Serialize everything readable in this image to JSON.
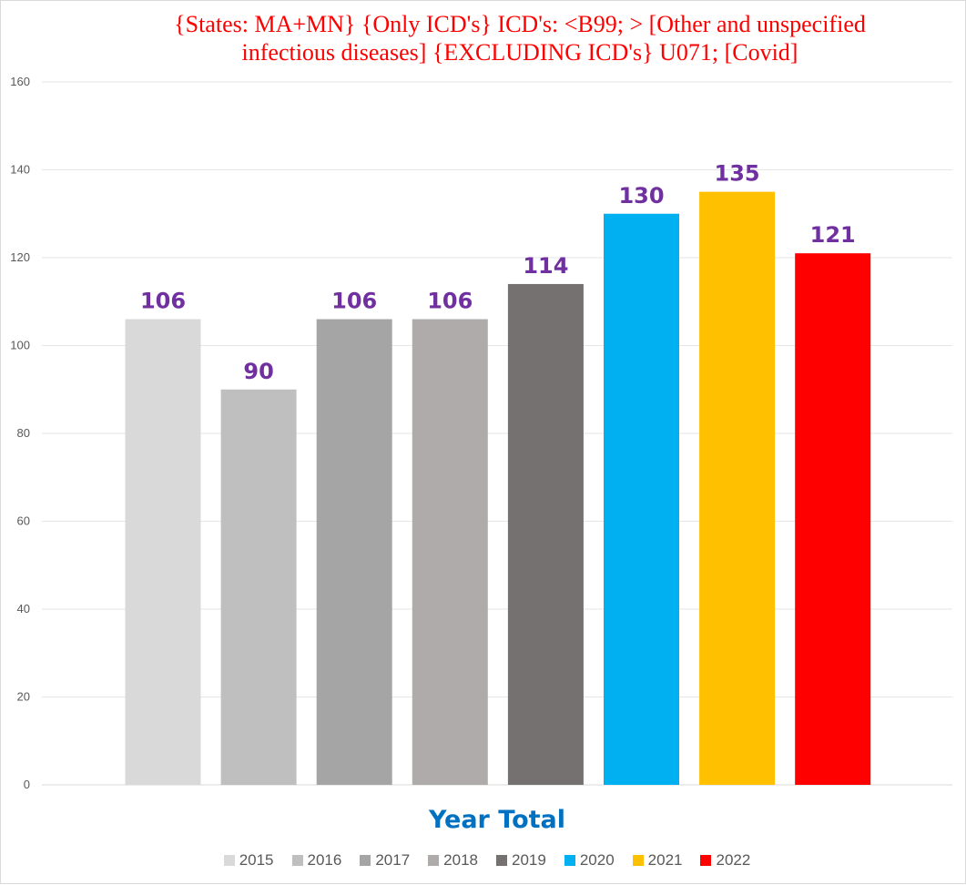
{
  "chart_data": {
    "type": "bar",
    "title": [
      "{States: MA+MN}   {Only ICD's}  ICD's: <B99; > [Other and unspecified",
      "infectious diseases]  {EXCLUDING ICD's}  U071; [Covid]"
    ],
    "xlabel": "Year Total",
    "ylabel": "",
    "ylim": [
      0,
      160
    ],
    "yticks": [
      0,
      20,
      40,
      60,
      80,
      100,
      120,
      140,
      160
    ],
    "grid": true,
    "legend_position": "bottom",
    "series": [
      {
        "name": "2015",
        "value": 106,
        "label": "106",
        "color": "#d9d9d9"
      },
      {
        "name": "2016",
        "value": 90,
        "label": "90",
        "color": "#bfbfbf"
      },
      {
        "name": "2017",
        "value": 106,
        "label": "106",
        "color": "#a5a5a5"
      },
      {
        "name": "2018",
        "value": 106,
        "label": "106",
        "color": "#afabab"
      },
      {
        "name": "2019",
        "value": 114,
        "label": "114",
        "color": "#767171"
      },
      {
        "name": "2020",
        "value": 130,
        "label": "130",
        "color": "#00b0f0"
      },
      {
        "name": "2021",
        "value": 135,
        "label": "135",
        "color": "#ffc000"
      },
      {
        "name": "2022",
        "value": 121,
        "label": "121",
        "color": "#ff0000"
      }
    ]
  }
}
